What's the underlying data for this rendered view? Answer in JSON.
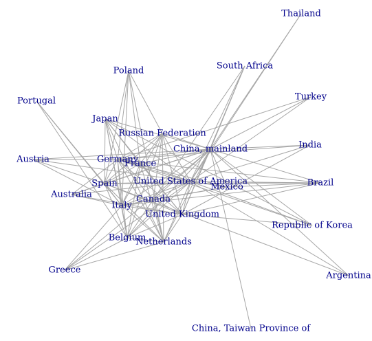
{
  "graph": {
    "label_color": "#00008b",
    "edge_color": "#a6a6a6",
    "nodes": [
      {
        "id": "thailand",
        "label": "Thailand"
      },
      {
        "id": "south_africa",
        "label": "South Africa"
      },
      {
        "id": "poland",
        "label": "Poland"
      },
      {
        "id": "portugal",
        "label": "Portugal"
      },
      {
        "id": "turkey",
        "label": "Turkey"
      },
      {
        "id": "japan",
        "label": "Japan"
      },
      {
        "id": "russia",
        "label": "Russian Federation"
      },
      {
        "id": "china",
        "label": "China, mainland"
      },
      {
        "id": "india",
        "label": "India"
      },
      {
        "id": "austria",
        "label": "Austria"
      },
      {
        "id": "germany",
        "label": "Germany"
      },
      {
        "id": "france",
        "label": "France"
      },
      {
        "id": "spain",
        "label": "Spain"
      },
      {
        "id": "usa",
        "label": "United States of America"
      },
      {
        "id": "mexico",
        "label": "Mexico"
      },
      {
        "id": "brazil",
        "label": "Brazil"
      },
      {
        "id": "australia",
        "label": "Australia"
      },
      {
        "id": "canada",
        "label": "Canada"
      },
      {
        "id": "italy",
        "label": "Italy"
      },
      {
        "id": "uk",
        "label": "United Kingdom"
      },
      {
        "id": "korea",
        "label": "Republic of Korea"
      },
      {
        "id": "belgium",
        "label": "Belgium"
      },
      {
        "id": "netherlands",
        "label": "Netherlands"
      },
      {
        "id": "greece",
        "label": "Greece"
      },
      {
        "id": "argentina",
        "label": "Argentina"
      },
      {
        "id": "taiwan",
        "label": "China, Taiwan Province of"
      }
    ],
    "edges": [
      [
        "thailand",
        "china"
      ],
      [
        "thailand",
        "usa"
      ],
      [
        "south_africa",
        "china"
      ],
      [
        "south_africa",
        "usa"
      ],
      [
        "south_africa",
        "uk"
      ],
      [
        "south_africa",
        "canada"
      ],
      [
        "poland",
        "germany"
      ],
      [
        "poland",
        "russia"
      ],
      [
        "poland",
        "italy"
      ],
      [
        "poland",
        "netherlands"
      ],
      [
        "poland",
        "spain"
      ],
      [
        "poland",
        "france"
      ],
      [
        "portugal",
        "spain"
      ],
      [
        "portugal",
        "italy"
      ],
      [
        "portugal",
        "belgium"
      ],
      [
        "turkey",
        "china"
      ],
      [
        "turkey",
        "usa"
      ],
      [
        "turkey",
        "germany"
      ],
      [
        "japan",
        "china"
      ],
      [
        "japan",
        "usa"
      ],
      [
        "japan",
        "italy"
      ],
      [
        "japan",
        "spain"
      ],
      [
        "japan",
        "germany"
      ],
      [
        "japan",
        "france"
      ],
      [
        "japan",
        "uk"
      ],
      [
        "japan",
        "netherlands"
      ],
      [
        "japan",
        "belgium"
      ],
      [
        "russia",
        "china"
      ],
      [
        "russia",
        "usa"
      ],
      [
        "russia",
        "germany"
      ],
      [
        "russia",
        "italy"
      ],
      [
        "russia",
        "spain"
      ],
      [
        "russia",
        "netherlands"
      ],
      [
        "russia",
        "uk"
      ],
      [
        "russia",
        "france"
      ],
      [
        "russia",
        "belgium"
      ],
      [
        "russia",
        "canada"
      ],
      [
        "china",
        "usa"
      ],
      [
        "china",
        "germany"
      ],
      [
        "china",
        "italy"
      ],
      [
        "china",
        "spain"
      ],
      [
        "china",
        "uk"
      ],
      [
        "china",
        "netherlands"
      ],
      [
        "china",
        "belgium"
      ],
      [
        "china",
        "france"
      ],
      [
        "china",
        "canada"
      ],
      [
        "china",
        "australia"
      ],
      [
        "china",
        "india"
      ],
      [
        "china",
        "brazil"
      ],
      [
        "china",
        "korea"
      ],
      [
        "china",
        "mexico"
      ],
      [
        "china",
        "taiwan"
      ],
      [
        "china",
        "argentina"
      ],
      [
        "china",
        "greece"
      ],
      [
        "india",
        "usa"
      ],
      [
        "india",
        "germany"
      ],
      [
        "india",
        "uk"
      ],
      [
        "austria",
        "germany"
      ],
      [
        "austria",
        "italy"
      ],
      [
        "austria",
        "usa"
      ],
      [
        "austria",
        "china"
      ],
      [
        "austria",
        "spain"
      ],
      [
        "germany",
        "usa"
      ],
      [
        "germany",
        "italy"
      ],
      [
        "germany",
        "spain"
      ],
      [
        "germany",
        "netherlands"
      ],
      [
        "germany",
        "uk"
      ],
      [
        "germany",
        "france"
      ],
      [
        "germany",
        "belgium"
      ],
      [
        "germany",
        "mexico"
      ],
      [
        "germany",
        "brazil"
      ],
      [
        "germany",
        "canada"
      ],
      [
        "france",
        "usa"
      ],
      [
        "france",
        "italy"
      ],
      [
        "france",
        "spain"
      ],
      [
        "france",
        "uk"
      ],
      [
        "france",
        "netherlands"
      ],
      [
        "france",
        "belgium"
      ],
      [
        "spain",
        "usa"
      ],
      [
        "spain",
        "italy"
      ],
      [
        "spain",
        "netherlands"
      ],
      [
        "spain",
        "uk"
      ],
      [
        "spain",
        "belgium"
      ],
      [
        "spain",
        "brazil"
      ],
      [
        "usa",
        "mexico"
      ],
      [
        "usa",
        "brazil"
      ],
      [
        "usa",
        "canada"
      ],
      [
        "usa",
        "italy"
      ],
      [
        "usa",
        "uk"
      ],
      [
        "usa",
        "netherlands"
      ],
      [
        "usa",
        "belgium"
      ],
      [
        "usa",
        "australia"
      ],
      [
        "usa",
        "korea"
      ],
      [
        "usa",
        "argentina"
      ],
      [
        "usa",
        "greece"
      ],
      [
        "mexico",
        "brazil"
      ],
      [
        "mexico",
        "canada"
      ],
      [
        "mexico",
        "italy"
      ],
      [
        "brazil",
        "italy"
      ],
      [
        "brazil",
        "spain"
      ],
      [
        "brazil",
        "uk"
      ],
      [
        "australia",
        "china"
      ],
      [
        "australia",
        "uk"
      ],
      [
        "australia",
        "italy"
      ],
      [
        "australia",
        "spain"
      ],
      [
        "australia",
        "germany"
      ],
      [
        "canada",
        "italy"
      ],
      [
        "canada",
        "uk"
      ],
      [
        "canada",
        "netherlands"
      ],
      [
        "canada",
        "belgium"
      ],
      [
        "italy",
        "uk"
      ],
      [
        "italy",
        "netherlands"
      ],
      [
        "italy",
        "belgium"
      ],
      [
        "italy",
        "greece"
      ],
      [
        "uk",
        "netherlands"
      ],
      [
        "uk",
        "belgium"
      ],
      [
        "uk",
        "korea"
      ],
      [
        "belgium",
        "netherlands"
      ],
      [
        "belgium",
        "greece"
      ],
      [
        "netherlands",
        "greece"
      ],
      [
        "korea",
        "germany"
      ],
      [
        "korea",
        "japan"
      ],
      [
        "argentina",
        "spain"
      ]
    ]
  }
}
